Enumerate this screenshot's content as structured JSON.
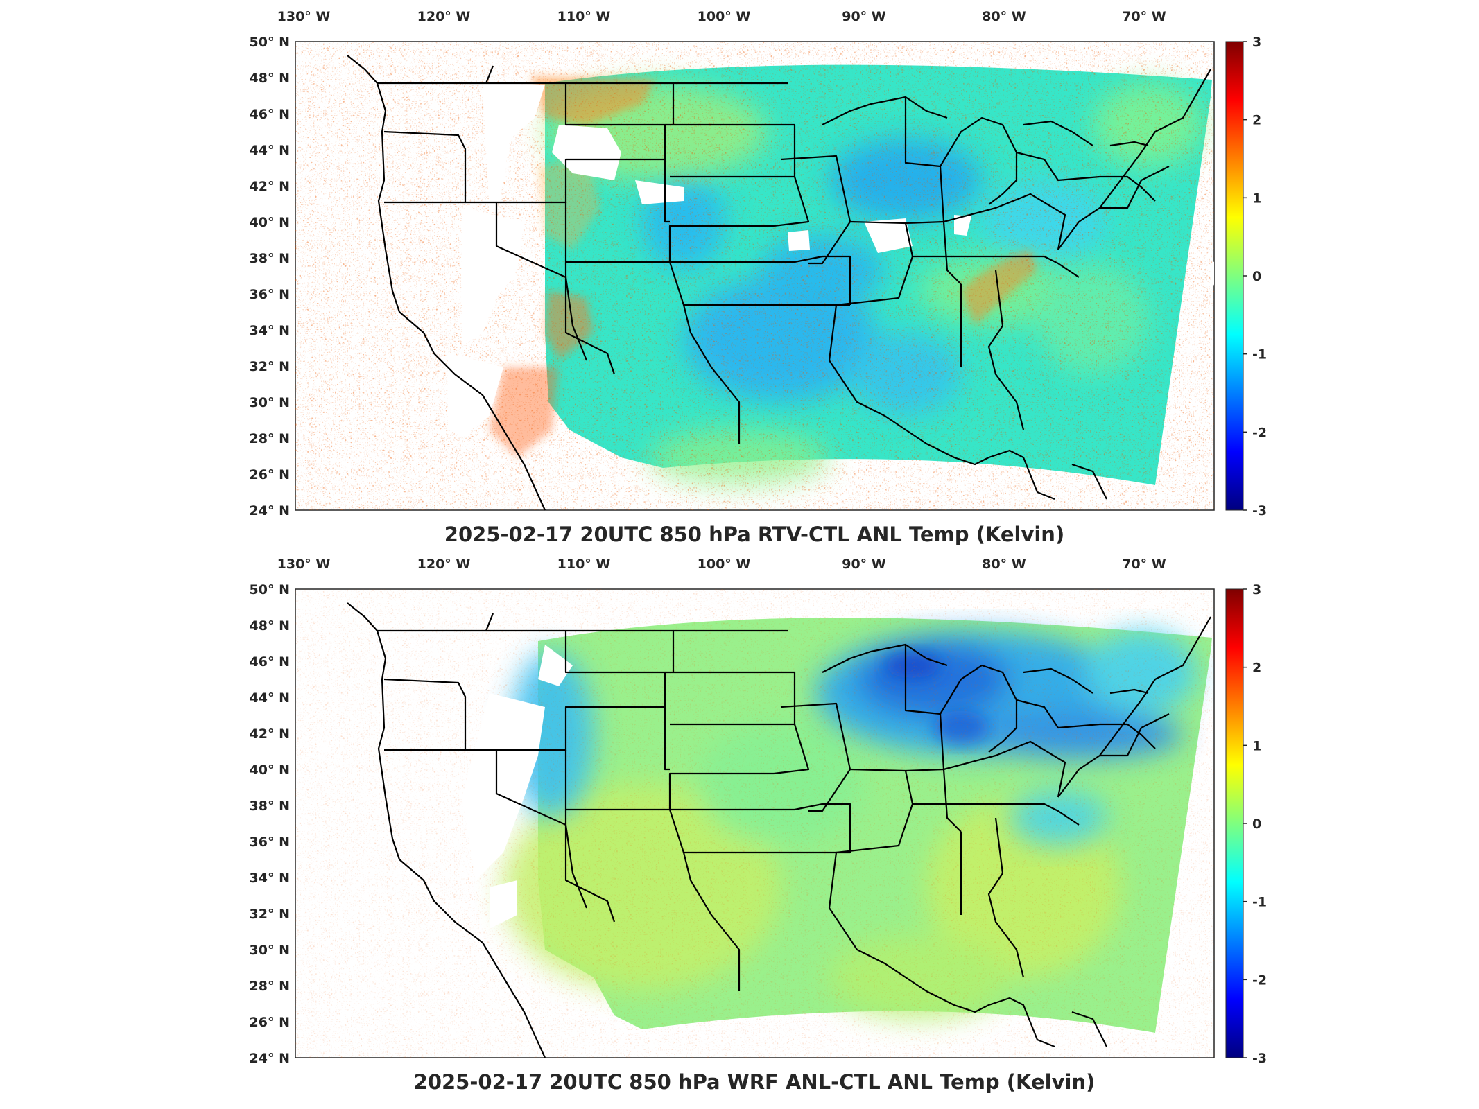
{
  "panels": [
    {
      "title": "2025-02-17 20UTC 850 hPa RTV-CTL ANL Temp (Kelvin)",
      "pattern": "rtv"
    },
    {
      "title": "2025-02-17 20UTC 850 hPa WRF ANL-CTL ANL Temp (Kelvin)",
      "pattern": "wrf"
    }
  ],
  "lon_labels": [
    "130° W",
    "120° W",
    "110° W",
    "100° W",
    "90° W",
    "80° W",
    "70° W"
  ],
  "lon_values": [
    -130,
    -120,
    -110,
    -100,
    -90,
    -80,
    -70
  ],
  "lat_labels": [
    "50° N",
    "48° N",
    "46° N",
    "44° N",
    "42° N",
    "40° N",
    "38° N",
    "36° N",
    "34° N",
    "32° N",
    "30° N",
    "28° N",
    "26° N",
    "24° N"
  ],
  "lat_values": [
    50,
    48,
    46,
    44,
    42,
    40,
    38,
    36,
    34,
    32,
    30,
    28,
    26,
    24
  ],
  "colorbar": {
    "ticks": [
      "3",
      "2",
      "1",
      "0",
      "-1",
      "-2",
      "-3"
    ],
    "min": -3,
    "max": 3,
    "colormap": "jet",
    "colors": [
      "#00007f",
      "#0000ff",
      "#007fff",
      "#00ffff",
      "#7fff7f",
      "#ffff00",
      "#ff7f00",
      "#ff0000",
      "#7f0000"
    ]
  },
  "colors": {
    "background": "#ffffff",
    "boundary": "#000000",
    "text": "#262626"
  }
}
